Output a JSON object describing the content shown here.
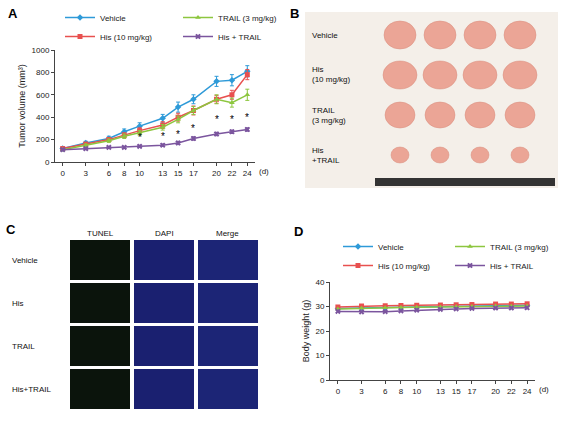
{
  "chart_data": [
    {
      "panel": "A",
      "type": "line",
      "xlabel": "(d)",
      "ylabel": "Tumor volume (mm³)",
      "x": [
        0,
        3,
        6,
        8,
        10,
        13,
        15,
        17,
        20,
        22,
        24
      ],
      "xlim": [
        -1,
        25
      ],
      "xticks": [
        0,
        3,
        6,
        8,
        10,
        13,
        15,
        17,
        20,
        22,
        24
      ],
      "ylim": [
        0,
        1000
      ],
      "yticks": [
        0,
        200,
        400,
        600,
        800,
        1000
      ],
      "grid": false,
      "series": [
        {
          "name": "Vehicle",
          "color": "#2e9ad8",
          "marker": "diamond",
          "line_style": "solid",
          "values": [
            120,
            170,
            210,
            270,
            320,
            390,
            490,
            560,
            720,
            730,
            810
          ],
          "errors": [
            10,
            15,
            20,
            25,
            30,
            35,
            45,
            40,
            45,
            50,
            50
          ]
        },
        {
          "name": "His (10 mg/kg)",
          "color": "#e8504f",
          "marker": "square",
          "line_style": "solid",
          "values": [
            120,
            160,
            200,
            240,
            280,
            330,
            400,
            460,
            560,
            600,
            780
          ],
          "errors": [
            10,
            10,
            15,
            20,
            25,
            30,
            35,
            40,
            35,
            40,
            45
          ]
        },
        {
          "name": "TRAIL (3 mg/kg)",
          "color": "#8dc63f",
          "marker": "triangle-up",
          "line_style": "solid",
          "values": [
            110,
            150,
            190,
            230,
            260,
            310,
            380,
            460,
            560,
            530,
            600
          ],
          "errors": [
            10,
            10,
            15,
            20,
            20,
            25,
            30,
            35,
            40,
            40,
            50
          ]
        },
        {
          "name": "His + TRAIL",
          "color": "#7b559e",
          "marker": "x",
          "line_style": "solid",
          "values": [
            110,
            120,
            130,
            130,
            140,
            150,
            170,
            210,
            250,
            270,
            290
          ],
          "errors": [
            10,
            10,
            10,
            10,
            10,
            10,
            15,
            15,
            15,
            15,
            15
          ]
        }
      ],
      "annotations": [
        {
          "x": 10,
          "y": 215,
          "text": "*"
        },
        {
          "x": 13,
          "y": 225,
          "text": "*"
        },
        {
          "x": 15,
          "y": 245,
          "text": "*"
        },
        {
          "x": 17,
          "y": 300,
          "text": "*"
        },
        {
          "x": 20,
          "y": 380,
          "text": "*"
        },
        {
          "x": 22,
          "y": 380,
          "text": "*"
        },
        {
          "x": 24,
          "y": 400,
          "text": "*"
        }
      ]
    },
    {
      "panel": "D",
      "type": "line",
      "xlabel": "(d)",
      "ylabel": "Body weight (g)",
      "x": [
        0,
        3,
        6,
        8,
        10,
        13,
        15,
        17,
        20,
        22,
        24
      ],
      "xlim": [
        -1,
        25
      ],
      "xticks": [
        0,
        3,
        6,
        8,
        10,
        13,
        15,
        17,
        20,
        22,
        24
      ],
      "ylim": [
        0,
        40
      ],
      "yticks": [
        0,
        10,
        20,
        30,
        40
      ],
      "grid": false,
      "series": [
        {
          "name": "Vehicle",
          "color": "#2e9ad8",
          "marker": "diamond",
          "line_style": "solid",
          "values": [
            29.2,
            29.5,
            29.6,
            29.7,
            29.8,
            30.0,
            30.1,
            30.2,
            30.5,
            30.4,
            30.5
          ]
        },
        {
          "name": "His (10 mg/kg)",
          "color": "#e8504f",
          "marker": "square",
          "line_style": "solid",
          "values": [
            29.8,
            30.2,
            30.3,
            30.4,
            30.5,
            30.6,
            30.7,
            30.8,
            31.0,
            31.0,
            31.1
          ]
        },
        {
          "name": "TRAIL (3 mg/kg)",
          "color": "#8dc63f",
          "marker": "triangle-up",
          "line_style": "solid",
          "values": [
            29.0,
            29.3,
            29.5,
            29.6,
            29.7,
            29.8,
            29.9,
            30.0,
            30.2,
            30.1,
            30.2
          ]
        },
        {
          "name": "His + TRAIL",
          "color": "#7b559e",
          "marker": "x",
          "line_style": "solid",
          "values": [
            28.0,
            27.8,
            27.9,
            28.2,
            28.5,
            28.8,
            29.0,
            29.2,
            29.4,
            29.4,
            29.5
          ]
        }
      ]
    }
  ],
  "photo": {
    "panel": "B",
    "rows": [
      "Vehicle",
      "His (10 mg/kg)",
      "TRAIL (3 mg/kg)",
      "His +TRAIL"
    ]
  },
  "microscopy": {
    "panel": "C",
    "columns": [
      "TUNEL",
      "DAPI",
      "Merge"
    ],
    "rows": [
      "Vehicle",
      "His",
      "TRAIL",
      "His+TRAIL"
    ]
  }
}
